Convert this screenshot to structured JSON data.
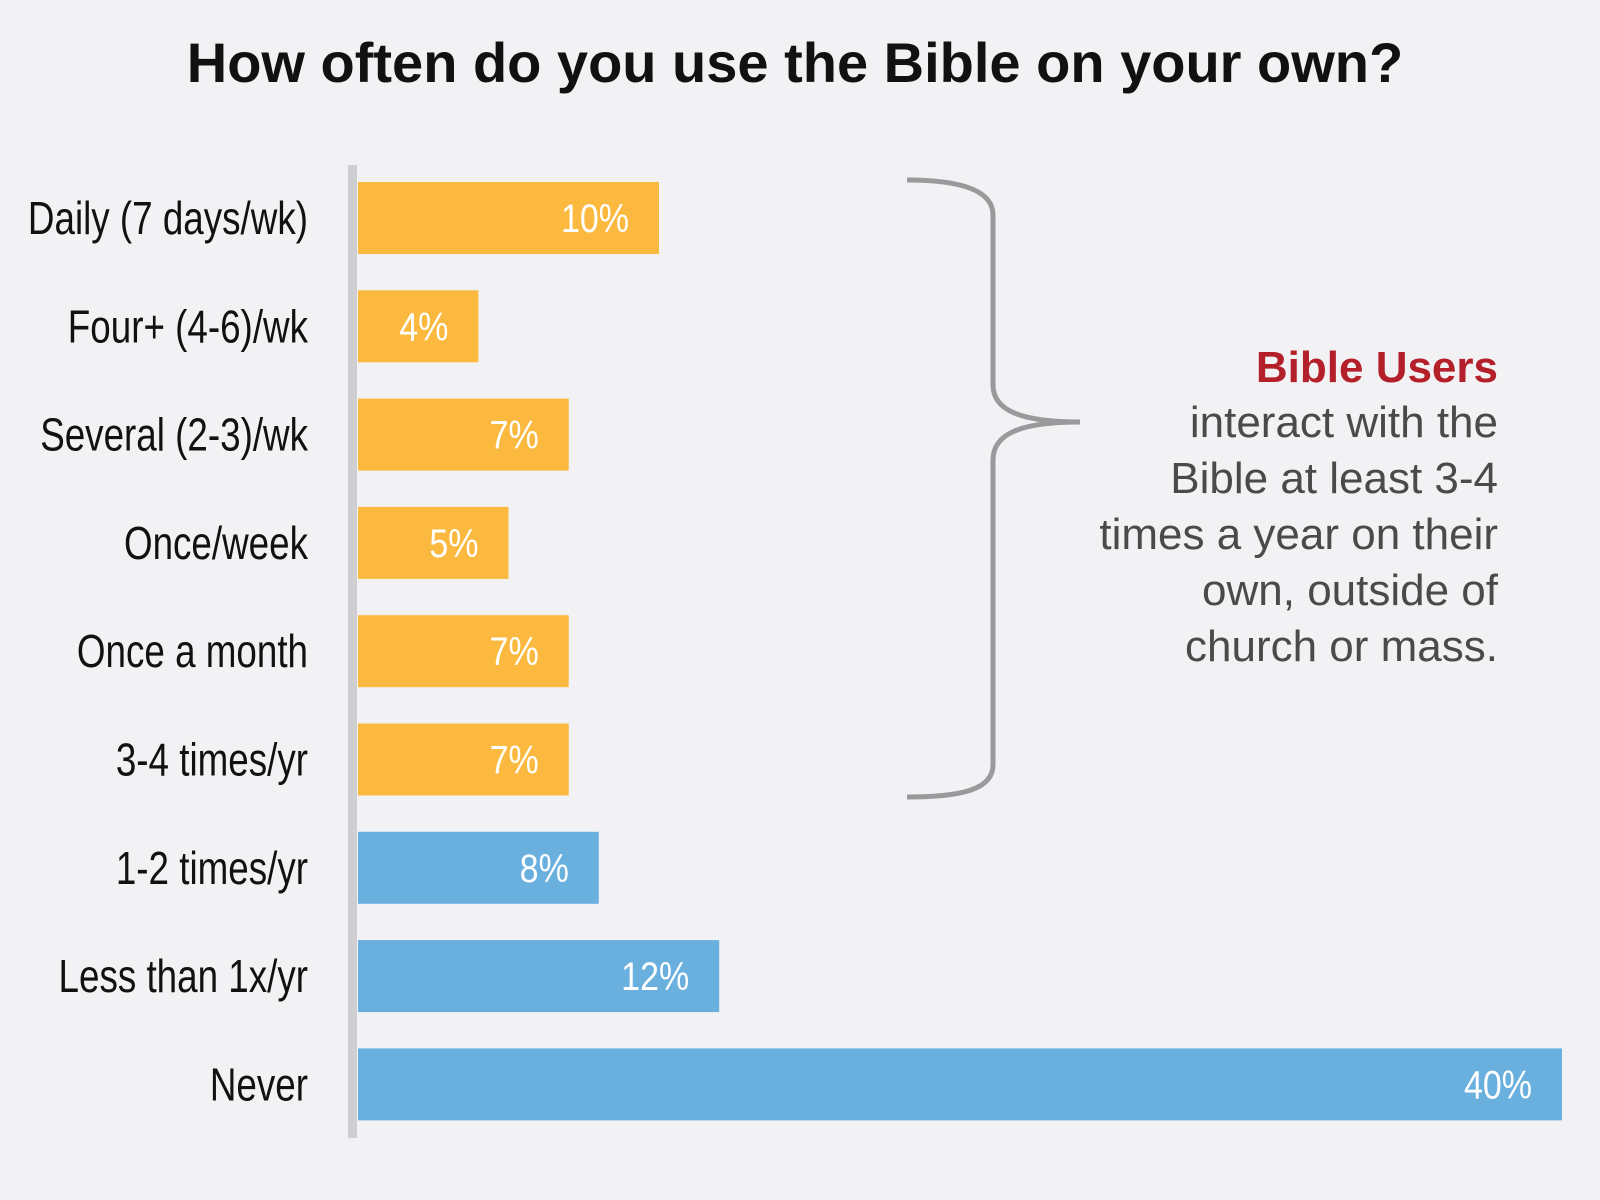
{
  "chart_data": {
    "type": "bar",
    "orientation": "horizontal",
    "title": "How often do you use the Bible on your own?",
    "categories": [
      "Daily (7 days/wk)",
      "Four+ (4-6)/wk",
      "Several (2-3)/wk",
      "Once/week",
      "Once a month",
      "3-4 times/yr",
      "1-2 times/yr",
      "Less than 1x/yr",
      "Never"
    ],
    "values": [
      10,
      4,
      7,
      5,
      7,
      7,
      8,
      12,
      40
    ],
    "value_labels": [
      "10%",
      "4%",
      "7%",
      "5%",
      "7%",
      "7%",
      "8%",
      "12%",
      "40%"
    ],
    "groups": [
      "user",
      "user",
      "user",
      "user",
      "user",
      "user",
      "non-user",
      "non-user",
      "non-user"
    ],
    "xlim": [
      0,
      40
    ],
    "xlabel": "",
    "ylabel": "",
    "grid": false,
    "annotation": {
      "heading": "Bible Users",
      "lines": [
        "interact with the",
        "Bible at least 3-4",
        "times a year on their",
        "own, outside of",
        "church or mass."
      ]
    }
  },
  "colors": {
    "user": "#fbb93f",
    "non_user": "#6ab0df",
    "heading": "#b3202a",
    "axis": "#cfcfd2",
    "bracket": "#9a9a9c"
  }
}
